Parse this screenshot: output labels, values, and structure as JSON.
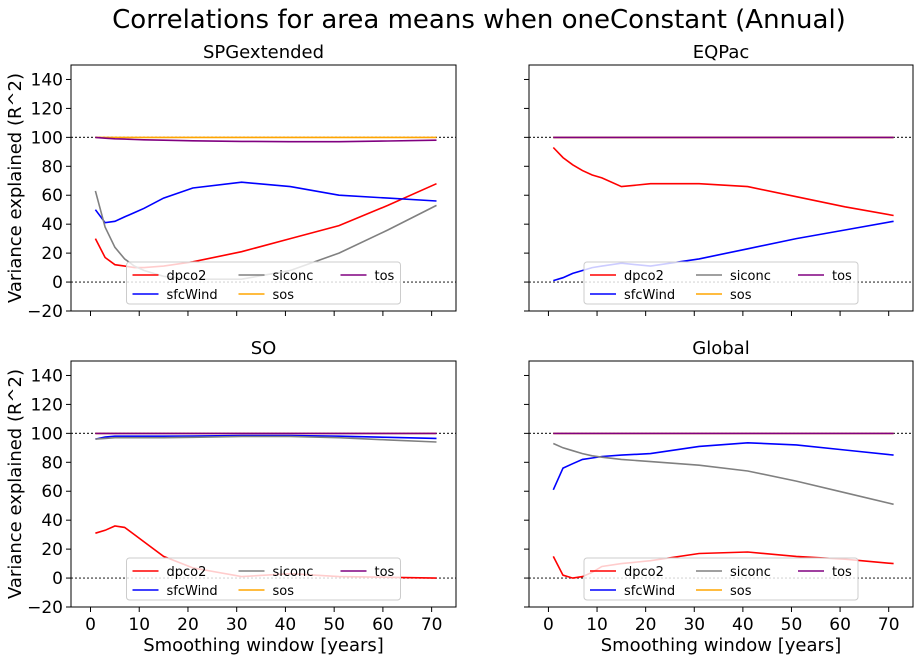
{
  "suptitle": "Correlations for area means when oneConstant (Annual)",
  "shared": {
    "xlabel": "Smoothing window [years]",
    "ylabel": "Variance explained (R^2)",
    "xticks": [
      0,
      10,
      20,
      30,
      40,
      50,
      60,
      70
    ],
    "yticks": [
      -20,
      0,
      20,
      40,
      60,
      80,
      100,
      120,
      140
    ],
    "xlim": [
      -4,
      75
    ],
    "ylim": [
      -20,
      150
    ],
    "ref_lines": [
      0,
      100
    ]
  },
  "colors": {
    "dpco2": "#ff0000",
    "sfcWind": "#0000ff",
    "siconc": "#808080",
    "sos": "#ffa500",
    "tos": "#800080",
    "reference": "#333333"
  },
  "legend": {
    "placement": "lower center",
    "entries": [
      "dpco2",
      "sfcWind",
      "siconc",
      "sos",
      "tos"
    ]
  },
  "chart_data": [
    {
      "type": "line",
      "title": "SPGextended",
      "x": [
        1,
        3,
        5,
        7,
        9,
        11,
        15,
        21,
        31,
        41,
        51,
        61,
        71
      ],
      "series": [
        {
          "name": "dpco2",
          "values": [
            30,
            17,
            12,
            11,
            10,
            10,
            11,
            14,
            21,
            30,
            39,
            53,
            68
          ]
        },
        {
          "name": "sfcWind",
          "values": [
            50,
            41,
            42,
            45,
            48,
            51,
            58,
            65,
            69,
            66,
            60,
            58,
            56
          ]
        },
        {
          "name": "siconc",
          "values": [
            63,
            38,
            24,
            16,
            11,
            8,
            4,
            2,
            2,
            8,
            20,
            36,
            53
          ]
        },
        {
          "name": "sos",
          "values": [
            100,
            100,
            100,
            100,
            100,
            100,
            100,
            100,
            100,
            100,
            100,
            100,
            100
          ]
        },
        {
          "name": "tos",
          "values": [
            100,
            99.4,
            99,
            98.8,
            98.5,
            98.3,
            98,
            97.6,
            97.2,
            97,
            97,
            97.5,
            98
          ]
        }
      ]
    },
    {
      "type": "line",
      "title": "EQPac",
      "x": [
        1,
        3,
        5,
        7,
        9,
        11,
        15,
        21,
        31,
        41,
        51,
        61,
        71
      ],
      "series": [
        {
          "name": "dpco2",
          "values": [
            93,
            86,
            81,
            77,
            74,
            72,
            66,
            68,
            68,
            66,
            59,
            52,
            46
          ]
        },
        {
          "name": "sfcWind",
          "values": [
            1,
            3,
            6,
            8,
            10,
            11,
            13,
            11,
            16,
            23,
            30,
            36,
            42
          ]
        },
        {
          "name": "siconc",
          "values": [
            100,
            100,
            100,
            100,
            100,
            100,
            100,
            100,
            100,
            100,
            100,
            100,
            100
          ]
        },
        {
          "name": "sos",
          "values": [
            100,
            100,
            100,
            100,
            100,
            100,
            100,
            100,
            100,
            100,
            100,
            100,
            100
          ]
        },
        {
          "name": "tos",
          "values": [
            100,
            100,
            100,
            100,
            100,
            100,
            100,
            100,
            100,
            100,
            100,
            100,
            100
          ]
        }
      ]
    },
    {
      "type": "line",
      "title": "SO",
      "x": [
        1,
        3,
        5,
        7,
        9,
        11,
        15,
        21,
        31,
        41,
        51,
        61,
        71
      ],
      "series": [
        {
          "name": "dpco2",
          "values": [
            31,
            33,
            36,
            35,
            30,
            25,
            15,
            7,
            1,
            3,
            1,
            0.5,
            0
          ]
        },
        {
          "name": "sfcWind",
          "values": [
            96,
            97.5,
            98,
            98,
            98,
            98,
            98,
            98.2,
            98.5,
            98.5,
            98,
            97.3,
            96.5
          ]
        },
        {
          "name": "siconc",
          "values": [
            96,
            96.5,
            97,
            97,
            97,
            97,
            97,
            97.3,
            97.8,
            97.8,
            97,
            95.5,
            94
          ]
        },
        {
          "name": "sos",
          "values": [
            100,
            100,
            100,
            100,
            100,
            100,
            100,
            100,
            100,
            100,
            100,
            100,
            100
          ]
        },
        {
          "name": "tos",
          "values": [
            100,
            100,
            100,
            100,
            100,
            100,
            100,
            100,
            100,
            100,
            100,
            100,
            100
          ]
        }
      ]
    },
    {
      "type": "line",
      "title": "Global",
      "x": [
        1,
        3,
        5,
        7,
        9,
        11,
        15,
        21,
        31,
        41,
        51,
        61,
        71
      ],
      "series": [
        {
          "name": "dpco2",
          "values": [
            15,
            2,
            0,
            1,
            4,
            8,
            10,
            12,
            17,
            18,
            15,
            13,
            10
          ]
        },
        {
          "name": "sfcWind",
          "values": [
            61,
            76,
            79,
            82,
            83,
            84,
            85,
            86,
            91,
            93.5,
            92,
            88.5,
            85
          ]
        },
        {
          "name": "siconc",
          "values": [
            93,
            90,
            88,
            86,
            84.5,
            83.5,
            82,
            80.5,
            78,
            74,
            67,
            59,
            51
          ]
        },
        {
          "name": "sos",
          "values": [
            100,
            100,
            100,
            100,
            100,
            100,
            100,
            100,
            100,
            100,
            100,
            100,
            100
          ]
        },
        {
          "name": "tos",
          "values": [
            100,
            100,
            100,
            100,
            100,
            100,
            100,
            100,
            100,
            100,
            100,
            100,
            100
          ]
        }
      ]
    }
  ]
}
